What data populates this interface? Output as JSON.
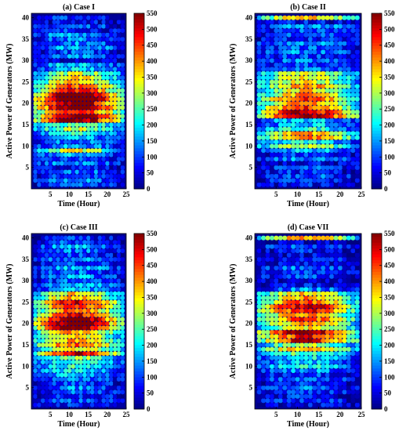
{
  "chart_data": [
    {
      "type": "heatmap",
      "title": "(a) Case I",
      "xlabel": "Time (Hour)",
      "ylabel": "Active Power of Generators (MW)",
      "x_ticks": [
        5,
        10,
        15,
        20,
        25
      ],
      "y_ticks": [
        5,
        10,
        15,
        20,
        25,
        30,
        35,
        40
      ],
      "colorbar_ticks": [
        0,
        50,
        100,
        150,
        200,
        250,
        300,
        350,
        400,
        450,
        500,
        550
      ],
      "colorbar_range": [
        0,
        550
      ],
      "grid": "24 hours x 40 generators",
      "profile": [
        [
          1,
          100
        ],
        [
          2,
          120
        ],
        [
          3,
          90
        ],
        [
          4,
          110
        ],
        [
          5,
          70
        ],
        [
          6,
          130
        ],
        [
          7,
          80
        ],
        [
          8,
          140
        ],
        [
          9,
          280
        ],
        [
          10,
          130
        ],
        [
          11,
          120
        ],
        [
          12,
          130
        ],
        [
          13,
          190
        ],
        [
          14,
          260
        ],
        [
          15,
          230
        ],
        [
          16,
          470
        ],
        [
          17,
          490
        ],
        [
          18,
          420
        ],
        [
          19,
          500
        ],
        [
          20,
          470
        ],
        [
          21,
          520
        ],
        [
          22,
          510
        ],
        [
          23,
          400
        ],
        [
          24,
          370
        ],
        [
          25,
          310
        ],
        [
          26,
          290
        ],
        [
          27,
          260
        ],
        [
          28,
          150
        ],
        [
          29,
          160
        ],
        [
          30,
          60
        ],
        [
          31,
          110
        ],
        [
          32,
          90
        ],
        [
          33,
          150
        ],
        [
          34,
          120
        ],
        [
          35,
          110
        ],
        [
          36,
          140
        ],
        [
          37,
          80
        ],
        [
          38,
          100
        ],
        [
          39,
          60
        ],
        [
          40,
          80
        ]
      ]
    },
    {
      "type": "heatmap",
      "title": "(b) Case II",
      "xlabel": "Time (Hour)",
      "ylabel": "Active Power of Generators (MW)",
      "x_ticks": [
        5,
        10,
        15,
        20,
        25
      ],
      "y_ticks": [
        5,
        10,
        15,
        20,
        25,
        30,
        35,
        40
      ],
      "colorbar_ticks": [
        0,
        50,
        100,
        150,
        200,
        250,
        300,
        350,
        400,
        450,
        500,
        550
      ],
      "colorbar_range": [
        0,
        550
      ],
      "grid": "24 hours x 40 generators",
      "profile": [
        [
          1,
          60
        ],
        [
          2,
          80
        ],
        [
          3,
          100
        ],
        [
          4,
          70
        ],
        [
          5,
          90
        ],
        [
          6,
          60
        ],
        [
          7,
          120
        ],
        [
          8,
          80
        ],
        [
          9,
          150
        ],
        [
          10,
          260
        ],
        [
          11,
          180
        ],
        [
          12,
          350
        ],
        [
          13,
          330
        ],
        [
          14,
          200
        ],
        [
          15,
          150
        ],
        [
          16,
          160
        ],
        [
          17,
          470
        ],
        [
          18,
          440
        ],
        [
          19,
          380
        ],
        [
          20,
          360
        ],
        [
          21,
          390
        ],
        [
          22,
          330
        ],
        [
          23,
          300
        ],
        [
          24,
          340
        ],
        [
          25,
          280
        ],
        [
          26,
          290
        ],
        [
          27,
          270
        ],
        [
          28,
          120
        ],
        [
          29,
          90
        ],
        [
          30,
          110
        ],
        [
          31,
          90
        ],
        [
          32,
          120
        ],
        [
          33,
          100
        ],
        [
          34,
          130
        ],
        [
          35,
          80
        ],
        [
          36,
          110
        ],
        [
          37,
          90
        ],
        [
          38,
          140
        ],
        [
          39,
          60
        ],
        [
          40,
          330
        ]
      ]
    },
    {
      "type": "heatmap",
      "title": "(c) Case III",
      "xlabel": "Time (Hour)",
      "ylabel": "Active Power of Generators (MW)",
      "x_ticks": [
        5,
        10,
        15,
        20,
        25
      ],
      "y_ticks": [
        5,
        10,
        15,
        20,
        25,
        30,
        35,
        40
      ],
      "colorbar_ticks": [
        0,
        50,
        100,
        150,
        200,
        250,
        300,
        350,
        400,
        450,
        500,
        550
      ],
      "colorbar_range": [
        0,
        550
      ],
      "grid": "24 hours x 40 generators",
      "profile": [
        [
          1,
          70
        ],
        [
          2,
          90
        ],
        [
          3,
          80
        ],
        [
          4,
          100
        ],
        [
          5,
          120
        ],
        [
          6,
          90
        ],
        [
          7,
          110
        ],
        [
          8,
          150
        ],
        [
          9,
          170
        ],
        [
          10,
          190
        ],
        [
          11,
          210
        ],
        [
          12,
          240
        ],
        [
          13,
          420
        ],
        [
          14,
          300
        ],
        [
          15,
          370
        ],
        [
          16,
          330
        ],
        [
          17,
          290
        ],
        [
          18,
          330
        ],
        [
          19,
          470
        ],
        [
          20,
          500
        ],
        [
          21,
          480
        ],
        [
          22,
          410
        ],
        [
          23,
          360
        ],
        [
          24,
          400
        ],
        [
          25,
          420
        ],
        [
          26,
          330
        ],
        [
          27,
          300
        ],
        [
          28,
          140
        ],
        [
          29,
          150
        ],
        [
          30,
          100
        ],
        [
          31,
          130
        ],
        [
          32,
          110
        ],
        [
          33,
          140
        ],
        [
          34,
          90
        ],
        [
          35,
          120
        ],
        [
          36,
          80
        ],
        [
          37,
          110
        ],
        [
          38,
          140
        ],
        [
          39,
          90
        ],
        [
          40,
          70
        ]
      ]
    },
    {
      "type": "heatmap",
      "title": "(d) Case VII",
      "xlabel": "Time (Hour)",
      "ylabel": "Active Power of Generators (MW)",
      "x_ticks": [
        5,
        10,
        15,
        20,
        25
      ],
      "y_ticks": [
        5,
        10,
        15,
        20,
        25,
        30,
        35,
        40
      ],
      "colorbar_ticks": [
        0,
        50,
        100,
        150,
        200,
        250,
        300,
        350,
        400,
        450,
        500,
        550
      ],
      "colorbar_range": [
        0,
        550
      ],
      "grid": "24 hours x 40 generators",
      "profile": [
        [
          1,
          60
        ],
        [
          2,
          80
        ],
        [
          3,
          70
        ],
        [
          4,
          90
        ],
        [
          5,
          110
        ],
        [
          6,
          70
        ],
        [
          7,
          100
        ],
        [
          8,
          90
        ],
        [
          9,
          130
        ],
        [
          10,
          180
        ],
        [
          11,
          150
        ],
        [
          12,
          170
        ],
        [
          13,
          220
        ],
        [
          14,
          330
        ],
        [
          15,
          260
        ],
        [
          16,
          420
        ],
        [
          17,
          400
        ],
        [
          18,
          460
        ],
        [
          19,
          300
        ],
        [
          20,
          330
        ],
        [
          21,
          380
        ],
        [
          22,
          350
        ],
        [
          23,
          400
        ],
        [
          24,
          440
        ],
        [
          25,
          360
        ],
        [
          26,
          330
        ],
        [
          27,
          300
        ],
        [
          28,
          120
        ],
        [
          29,
          60
        ],
        [
          30,
          40
        ],
        [
          31,
          90
        ],
        [
          32,
          70
        ],
        [
          33,
          110
        ],
        [
          34,
          60
        ],
        [
          35,
          80
        ],
        [
          36,
          40
        ],
        [
          37,
          60
        ],
        [
          38,
          100
        ],
        [
          39,
          30
        ],
        [
          40,
          330
        ]
      ]
    }
  ]
}
